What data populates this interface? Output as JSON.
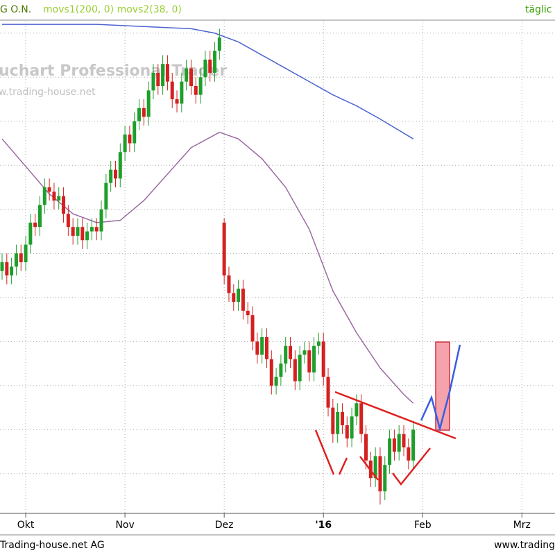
{
  "chart_data": {
    "type": "candlestick",
    "header": "G O.N.",
    "indicators": "movs1(200, 0) movs2(38, 0)",
    "interval": "täglic",
    "watermark": "uchart Professional Trader",
    "watermark_url": "w.trading-house.net",
    "footer_left": "Trading-house.net AG",
    "footer_right": "www.trading",
    "xlim": [
      -0.44,
      117
    ],
    "ylim": [
      0.1,
      11.28
    ],
    "xticks": [
      {
        "value": 5,
        "label": "Okt"
      },
      {
        "value": 26,
        "label": "Nov"
      },
      {
        "value": 47,
        "label": "Dez"
      },
      {
        "value": 68,
        "label": "'16"
      },
      {
        "value": 89,
        "label": "Feb"
      },
      {
        "value": 110,
        "label": "Mrz"
      }
    ],
    "ygrid": [
      1,
      2,
      3,
      4,
      5,
      6,
      7,
      8,
      9,
      10,
      11
    ],
    "grid": true,
    "up_color": "#1e9e2a",
    "down_color": "#d42020",
    "x": [
      0,
      1,
      2,
      3,
      4,
      5,
      6,
      7,
      8,
      9,
      10,
      11,
      12,
      13,
      14,
      15,
      16,
      17,
      18,
      19,
      20,
      21,
      22,
      23,
      24,
      25,
      26,
      27,
      28,
      29,
      30,
      31,
      32,
      33,
      34,
      35,
      36,
      37,
      38,
      39,
      40,
      41,
      42,
      43,
      44,
      45,
      46,
      47,
      48,
      49,
      50,
      51,
      52,
      53,
      54,
      55,
      56,
      57,
      58,
      59,
      60,
      61,
      62,
      63,
      64,
      65,
      66,
      67,
      68,
      69,
      70,
      71,
      72,
      73,
      74,
      75,
      76,
      77,
      78,
      79,
      80,
      81,
      82,
      83,
      84,
      85,
      86,
      87
    ],
    "open": [
      5.6,
      5.8,
      5.5,
      5.7,
      6.0,
      5.8,
      6.2,
      6.7,
      6.6,
      7.1,
      7.5,
      7.4,
      7.2,
      7.3,
      6.9,
      6.6,
      6.4,
      6.6,
      6.3,
      6.5,
      6.6,
      6.5,
      7.0,
      7.6,
      7.9,
      7.7,
      8.3,
      8.7,
      8.5,
      9.0,
      9.3,
      9.1,
      9.7,
      10.1,
      9.8,
      10.3,
      9.9,
      9.5,
      9.4,
      9.9,
      10.2,
      9.8,
      9.6,
      10.0,
      10.4,
      10.1,
      10.6,
      6.7,
      5.5,
      5.1,
      4.9,
      5.2,
      4.7,
      4.6,
      4.0,
      3.7,
      4.1,
      3.6,
      3.0,
      3.2,
      3.5,
      3.9,
      3.6,
      3.1,
      3.7,
      3.8,
      3.3,
      3.9,
      4.0,
      3.2,
      2.5,
      1.9,
      2.4,
      2.1,
      1.8,
      2.3,
      2.6,
      1.9,
      1.3,
      0.9,
      1.4,
      0.6,
      1.2,
      1.8,
      1.5,
      1.9,
      1.6,
      1.3
    ],
    "high": [
      6.0,
      6.0,
      5.9,
      6.2,
      6.2,
      6.4,
      6.9,
      6.9,
      7.3,
      7.7,
      7.7,
      7.6,
      7.5,
      7.5,
      7.1,
      6.8,
      6.8,
      6.8,
      6.7,
      6.8,
      6.8,
      7.2,
      7.8,
      8.1,
      8.1,
      8.5,
      8.9,
      8.9,
      9.2,
      9.5,
      9.5,
      9.9,
      10.3,
      10.3,
      10.5,
      10.5,
      10.1,
      9.7,
      10.1,
      10.4,
      10.4,
      10.0,
      10.2,
      10.6,
      10.6,
      10.8,
      11.1,
      6.8,
      5.7,
      5.3,
      5.4,
      5.4,
      4.9,
      4.8,
      4.2,
      4.3,
      4.3,
      3.8,
      3.4,
      3.7,
      4.1,
      4.1,
      3.8,
      3.9,
      4.0,
      4.0,
      4.1,
      4.2,
      4.2,
      3.4,
      2.7,
      2.6,
      2.6,
      2.3,
      2.5,
      2.8,
      2.8,
      2.1,
      1.5,
      1.6,
      1.6,
      1.4,
      2.0,
      2.0,
      2.1,
      2.1,
      1.8,
      2.2
    ],
    "low": [
      5.4,
      5.3,
      5.3,
      5.5,
      5.6,
      5.6,
      6.0,
      6.4,
      6.4,
      6.9,
      7.2,
      7.0,
      7.0,
      6.7,
      6.4,
      6.2,
      6.2,
      6.1,
      6.1,
      6.3,
      6.3,
      6.3,
      6.8,
      7.4,
      7.5,
      7.5,
      8.1,
      8.3,
      8.3,
      8.8,
      8.9,
      8.9,
      9.5,
      9.6,
      9.6,
      9.7,
      9.3,
      9.2,
      9.2,
      9.7,
      9.6,
      9.4,
      9.4,
      9.8,
      9.9,
      9.9,
      10.4,
      5.3,
      4.9,
      4.7,
      4.7,
      4.5,
      4.4,
      3.8,
      3.5,
      3.5,
      3.4,
      2.8,
      2.8,
      3.0,
      3.3,
      3.4,
      2.9,
      2.9,
      3.5,
      3.1,
      3.1,
      3.7,
      3.0,
      2.3,
      1.7,
      1.7,
      1.9,
      1.6,
      1.6,
      2.1,
      1.7,
      1.1,
      0.7,
      0.7,
      0.3,
      0.4,
      1.0,
      1.3,
      1.3,
      1.4,
      1.1,
      1.1
    ],
    "close": [
      5.8,
      5.5,
      5.7,
      6.0,
      5.8,
      6.2,
      6.7,
      6.6,
      7.1,
      7.5,
      7.4,
      7.2,
      7.3,
      6.9,
      6.6,
      6.4,
      6.6,
      6.3,
      6.5,
      6.6,
      6.5,
      7.0,
      7.6,
      7.9,
      7.7,
      8.3,
      8.7,
      8.5,
      9.0,
      9.3,
      9.1,
      9.7,
      10.1,
      9.8,
      10.3,
      9.9,
      9.5,
      9.4,
      9.9,
      10.2,
      9.8,
      9.6,
      10.0,
      10.4,
      10.1,
      10.6,
      10.9,
      5.5,
      5.1,
      4.9,
      5.2,
      4.7,
      4.6,
      4.0,
      3.7,
      4.1,
      3.6,
      3.0,
      3.2,
      3.5,
      3.9,
      3.6,
      3.1,
      3.7,
      3.8,
      3.3,
      3.9,
      4.0,
      3.2,
      2.5,
      1.9,
      2.4,
      2.1,
      1.8,
      2.3,
      2.6,
      1.9,
      1.3,
      0.9,
      1.4,
      0.6,
      1.2,
      1.8,
      1.5,
      1.9,
      1.6,
      1.3,
      2.0
    ],
    "lines": [
      {
        "color": "#4a64d0",
        "x": [
          0,
          10,
          20,
          30,
          40,
          45,
          50,
          55,
          60,
          65,
          70,
          75,
          80,
          87
        ],
        "values": [
          11.2,
          11.2,
          11.2,
          11.15,
          11.1,
          11.0,
          10.8,
          10.5,
          10.2,
          9.9,
          9.6,
          9.35,
          9.05,
          8.6
        ]
      },
      {
        "color": "#9a6aa0",
        "x": [
          0,
          10,
          15,
          20,
          25,
          30,
          35,
          40,
          46,
          50,
          55,
          60,
          65,
          70,
          75,
          80,
          85,
          87
        ],
        "values": [
          8.6,
          7.35,
          6.9,
          6.7,
          6.75,
          7.2,
          7.8,
          8.4,
          8.75,
          8.6,
          8.15,
          7.5,
          6.55,
          5.15,
          4.2,
          3.4,
          2.8,
          2.6
        ]
      }
    ]
  }
}
